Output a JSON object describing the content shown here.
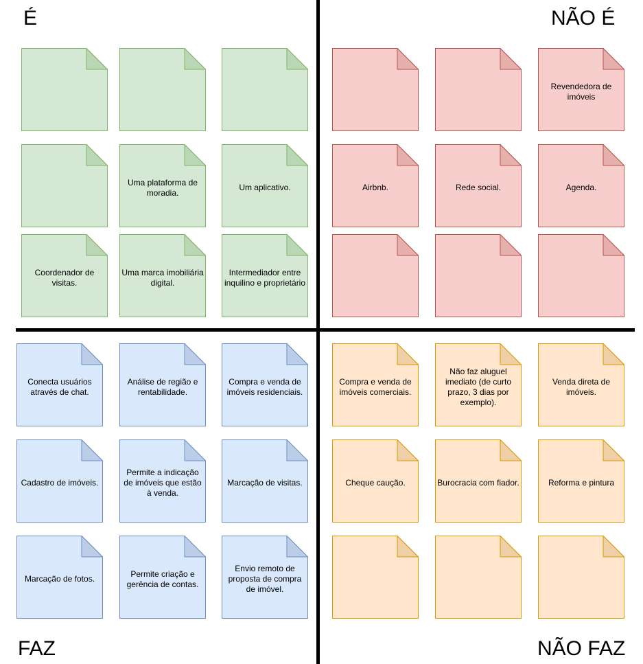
{
  "labels": {
    "e": "É",
    "nao_e": "NÃO É",
    "faz": "FAZ",
    "nao_faz": "NÃO FAZ"
  },
  "colors": {
    "green": {
      "fill": "#d5e8d4",
      "stroke": "#82b366",
      "fold": "#b9d6b5"
    },
    "red": {
      "fill": "#f8cecc",
      "stroke": "#b85450",
      "fold": "#e6b0ad"
    },
    "blue": {
      "fill": "#dae8fc",
      "stroke": "#6c8ebf",
      "fold": "#bccde8"
    },
    "orange": {
      "fill": "#ffe6cc",
      "stroke": "#d79b00",
      "fold": "#efcfa8"
    }
  },
  "quadrants": {
    "e": {
      "color": "green",
      "notes": [
        "",
        "",
        "",
        "",
        "Uma plataforma de moradia.",
        "Um aplicativo.",
        "Coordenador de visitas.",
        "Uma marca imobiliária digital.",
        "Intermediador entre inquilino e proprietário"
      ]
    },
    "nao_e": {
      "color": "red",
      "notes": [
        "",
        "",
        "Revendedora de imóveis",
        "Airbnb.",
        "Rede social.",
        "Agenda.",
        "",
        "",
        ""
      ]
    },
    "faz": {
      "color": "blue",
      "notes": [
        "Conecta usuários através de chat.",
        "Análise de região e rentabilidade.",
        "Compra e venda de imóveis residenciais.",
        "Cadastro de imóveis.",
        "Permite a indicação de imóveis que estão à venda.",
        "Marcação de visitas.",
        "Marcação de fotos.",
        "Permite criação e gerência de contas.",
        "Envio remoto de proposta de compra de imóvel."
      ]
    },
    "nao_faz": {
      "color": "orange",
      "notes": [
        "Compra e venda de imóveis comerciais.",
        "Não faz aluguel imediato (de curto prazo, 3 dias por exemplo).",
        "Venda direta de imóveis.",
        "Cheque caução.",
        "Burocracia com fiador.",
        "Reforma e pintura",
        "",
        "",
        ""
      ]
    }
  }
}
